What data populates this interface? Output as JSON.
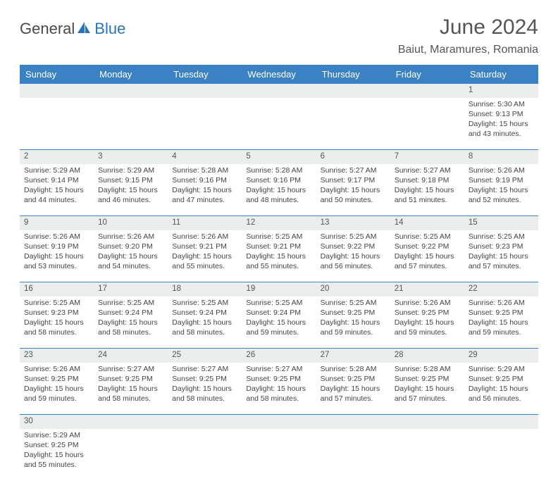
{
  "logo": {
    "part1": "General",
    "part2": "Blue",
    "icon_color": "#2a74b8"
  },
  "title": "June 2024",
  "location": "Baiut, Maramures, Romania",
  "header_bg": "#3b82c4",
  "daynum_bg": "#eceeee",
  "border_color": "#3b82c4",
  "weekdays": [
    "Sunday",
    "Monday",
    "Tuesday",
    "Wednesday",
    "Thursday",
    "Friday",
    "Saturday"
  ],
  "weeks": [
    {
      "nums": [
        "",
        "",
        "",
        "",
        "",
        "",
        "1"
      ],
      "cells": [
        null,
        null,
        null,
        null,
        null,
        null,
        {
          "sunrise": "Sunrise: 5:30 AM",
          "sunset": "Sunset: 9:13 PM",
          "day": "Daylight: 15 hours and 43 minutes."
        }
      ]
    },
    {
      "nums": [
        "2",
        "3",
        "4",
        "5",
        "6",
        "7",
        "8"
      ],
      "cells": [
        {
          "sunrise": "Sunrise: 5:29 AM",
          "sunset": "Sunset: 9:14 PM",
          "day": "Daylight: 15 hours and 44 minutes."
        },
        {
          "sunrise": "Sunrise: 5:29 AM",
          "sunset": "Sunset: 9:15 PM",
          "day": "Daylight: 15 hours and 46 minutes."
        },
        {
          "sunrise": "Sunrise: 5:28 AM",
          "sunset": "Sunset: 9:16 PM",
          "day": "Daylight: 15 hours and 47 minutes."
        },
        {
          "sunrise": "Sunrise: 5:28 AM",
          "sunset": "Sunset: 9:16 PM",
          "day": "Daylight: 15 hours and 48 minutes."
        },
        {
          "sunrise": "Sunrise: 5:27 AM",
          "sunset": "Sunset: 9:17 PM",
          "day": "Daylight: 15 hours and 50 minutes."
        },
        {
          "sunrise": "Sunrise: 5:27 AM",
          "sunset": "Sunset: 9:18 PM",
          "day": "Daylight: 15 hours and 51 minutes."
        },
        {
          "sunrise": "Sunrise: 5:26 AM",
          "sunset": "Sunset: 9:19 PM",
          "day": "Daylight: 15 hours and 52 minutes."
        }
      ]
    },
    {
      "nums": [
        "9",
        "10",
        "11",
        "12",
        "13",
        "14",
        "15"
      ],
      "cells": [
        {
          "sunrise": "Sunrise: 5:26 AM",
          "sunset": "Sunset: 9:19 PM",
          "day": "Daylight: 15 hours and 53 minutes."
        },
        {
          "sunrise": "Sunrise: 5:26 AM",
          "sunset": "Sunset: 9:20 PM",
          "day": "Daylight: 15 hours and 54 minutes."
        },
        {
          "sunrise": "Sunrise: 5:26 AM",
          "sunset": "Sunset: 9:21 PM",
          "day": "Daylight: 15 hours and 55 minutes."
        },
        {
          "sunrise": "Sunrise: 5:25 AM",
          "sunset": "Sunset: 9:21 PM",
          "day": "Daylight: 15 hours and 55 minutes."
        },
        {
          "sunrise": "Sunrise: 5:25 AM",
          "sunset": "Sunset: 9:22 PM",
          "day": "Daylight: 15 hours and 56 minutes."
        },
        {
          "sunrise": "Sunrise: 5:25 AM",
          "sunset": "Sunset: 9:22 PM",
          "day": "Daylight: 15 hours and 57 minutes."
        },
        {
          "sunrise": "Sunrise: 5:25 AM",
          "sunset": "Sunset: 9:23 PM",
          "day": "Daylight: 15 hours and 57 minutes."
        }
      ]
    },
    {
      "nums": [
        "16",
        "17",
        "18",
        "19",
        "20",
        "21",
        "22"
      ],
      "cells": [
        {
          "sunrise": "Sunrise: 5:25 AM",
          "sunset": "Sunset: 9:23 PM",
          "day": "Daylight: 15 hours and 58 minutes."
        },
        {
          "sunrise": "Sunrise: 5:25 AM",
          "sunset": "Sunset: 9:24 PM",
          "day": "Daylight: 15 hours and 58 minutes."
        },
        {
          "sunrise": "Sunrise: 5:25 AM",
          "sunset": "Sunset: 9:24 PM",
          "day": "Daylight: 15 hours and 58 minutes."
        },
        {
          "sunrise": "Sunrise: 5:25 AM",
          "sunset": "Sunset: 9:24 PM",
          "day": "Daylight: 15 hours and 59 minutes."
        },
        {
          "sunrise": "Sunrise: 5:25 AM",
          "sunset": "Sunset: 9:25 PM",
          "day": "Daylight: 15 hours and 59 minutes."
        },
        {
          "sunrise": "Sunrise: 5:26 AM",
          "sunset": "Sunset: 9:25 PM",
          "day": "Daylight: 15 hours and 59 minutes."
        },
        {
          "sunrise": "Sunrise: 5:26 AM",
          "sunset": "Sunset: 9:25 PM",
          "day": "Daylight: 15 hours and 59 minutes."
        }
      ]
    },
    {
      "nums": [
        "23",
        "24",
        "25",
        "26",
        "27",
        "28",
        "29"
      ],
      "cells": [
        {
          "sunrise": "Sunrise: 5:26 AM",
          "sunset": "Sunset: 9:25 PM",
          "day": "Daylight: 15 hours and 59 minutes."
        },
        {
          "sunrise": "Sunrise: 5:27 AM",
          "sunset": "Sunset: 9:25 PM",
          "day": "Daylight: 15 hours and 58 minutes."
        },
        {
          "sunrise": "Sunrise: 5:27 AM",
          "sunset": "Sunset: 9:25 PM",
          "day": "Daylight: 15 hours and 58 minutes."
        },
        {
          "sunrise": "Sunrise: 5:27 AM",
          "sunset": "Sunset: 9:25 PM",
          "day": "Daylight: 15 hours and 58 minutes."
        },
        {
          "sunrise": "Sunrise: 5:28 AM",
          "sunset": "Sunset: 9:25 PM",
          "day": "Daylight: 15 hours and 57 minutes."
        },
        {
          "sunrise": "Sunrise: 5:28 AM",
          "sunset": "Sunset: 9:25 PM",
          "day": "Daylight: 15 hours and 57 minutes."
        },
        {
          "sunrise": "Sunrise: 5:29 AM",
          "sunset": "Sunset: 9:25 PM",
          "day": "Daylight: 15 hours and 56 minutes."
        }
      ]
    },
    {
      "nums": [
        "30",
        "",
        "",
        "",
        "",
        "",
        ""
      ],
      "cells": [
        {
          "sunrise": "Sunrise: 5:29 AM",
          "sunset": "Sunset: 9:25 PM",
          "day": "Daylight: 15 hours and 55 minutes."
        },
        null,
        null,
        null,
        null,
        null,
        null
      ]
    }
  ]
}
